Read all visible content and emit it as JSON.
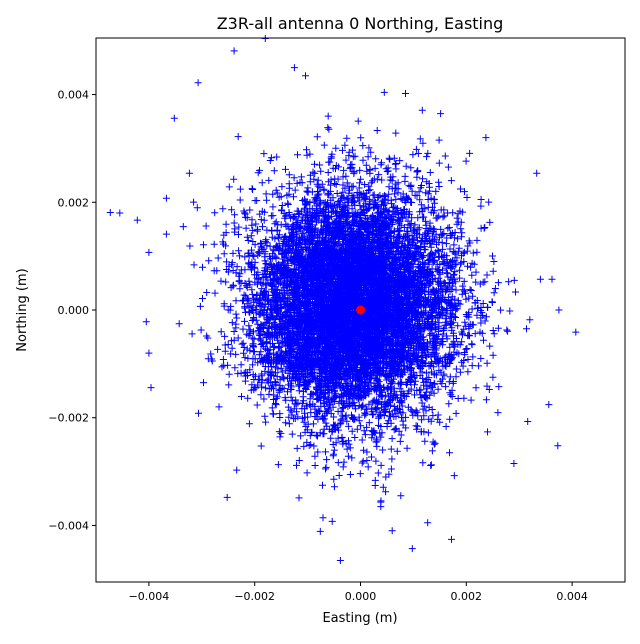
{
  "chart_data": {
    "type": "scatter",
    "title": "Z3R-all antenna 0 Northing, Easting",
    "xlabel": "Easting (m)",
    "ylabel": "Northing (m)",
    "xlim": [
      -0.005,
      0.005
    ],
    "ylim": [
      -0.00505,
      0.00505
    ],
    "xticks": [
      -0.004,
      -0.002,
      0.0,
      0.002,
      0.004
    ],
    "xtick_labels": [
      "−0.004",
      "−0.002",
      "0.000",
      "0.002",
      "0.004"
    ],
    "yticks": [
      -0.004,
      -0.002,
      0.0,
      0.002,
      0.004
    ],
    "ytick_labels": [
      "−0.004",
      "−0.002",
      "0.000",
      "0.002",
      "0.004"
    ],
    "grid": false,
    "series": [
      {
        "marker": "+",
        "color": "#0000ff",
        "points_note_visible_outliers": true,
        "points": [
          [
            -0.00473,
            0.00181
          ],
          [
            -0.00455,
            0.0018
          ],
          [
            -0.00422,
            0.00167
          ],
          [
            -0.00239,
            0.00481
          ],
          [
            -0.0018,
            0.00504
          ],
          [
            -0.00038,
            -0.00465
          ],
          [
            0.00098,
            -0.00443
          ],
          [
            0.00172,
            -0.00426
          ],
          [
            0.00373,
            -0.00252
          ],
          [
            0.00407,
            -0.00041
          ],
          [
            0.00375,
            0.0
          ],
          [
            0.00362,
            0.00057
          ],
          [
            0.00333,
            0.00254
          ],
          [
            -0.004,
            -0.0008
          ],
          [
            -0.00396,
            -0.00144
          ],
          [
            -0.00307,
            0.00422
          ],
          [
            -0.00125,
            0.0045
          ],
          [
            0.00085,
            0.00402
          ],
          [
            0.00237,
            0.0032
          ],
          [
            0.00316,
            -0.00207
          ],
          [
            0.0029,
            -0.00285
          ],
          [
            -0.00252,
            -0.00348
          ],
          [
            0.00045,
            0.00404
          ],
          [
            -0.00104,
            0.00435
          ],
          [
            -0.00405,
            -0.00022
          ],
          [
            -0.004,
            0.00107
          ],
          [
            -0.00367,
            0.00141
          ],
          [
            -0.00352,
            0.00356
          ],
          [
            -0.00076,
            -0.00411
          ],
          [
            0.0006,
            -0.0041
          ],
          [
            0.00127,
            -0.00395
          ],
          [
            0.0034,
            0.00057
          ]
        ]
      },
      {
        "marker": "o",
        "color": "#ff0000",
        "points": [
          [
            0.0,
            0.0
          ]
        ]
      }
    ]
  }
}
